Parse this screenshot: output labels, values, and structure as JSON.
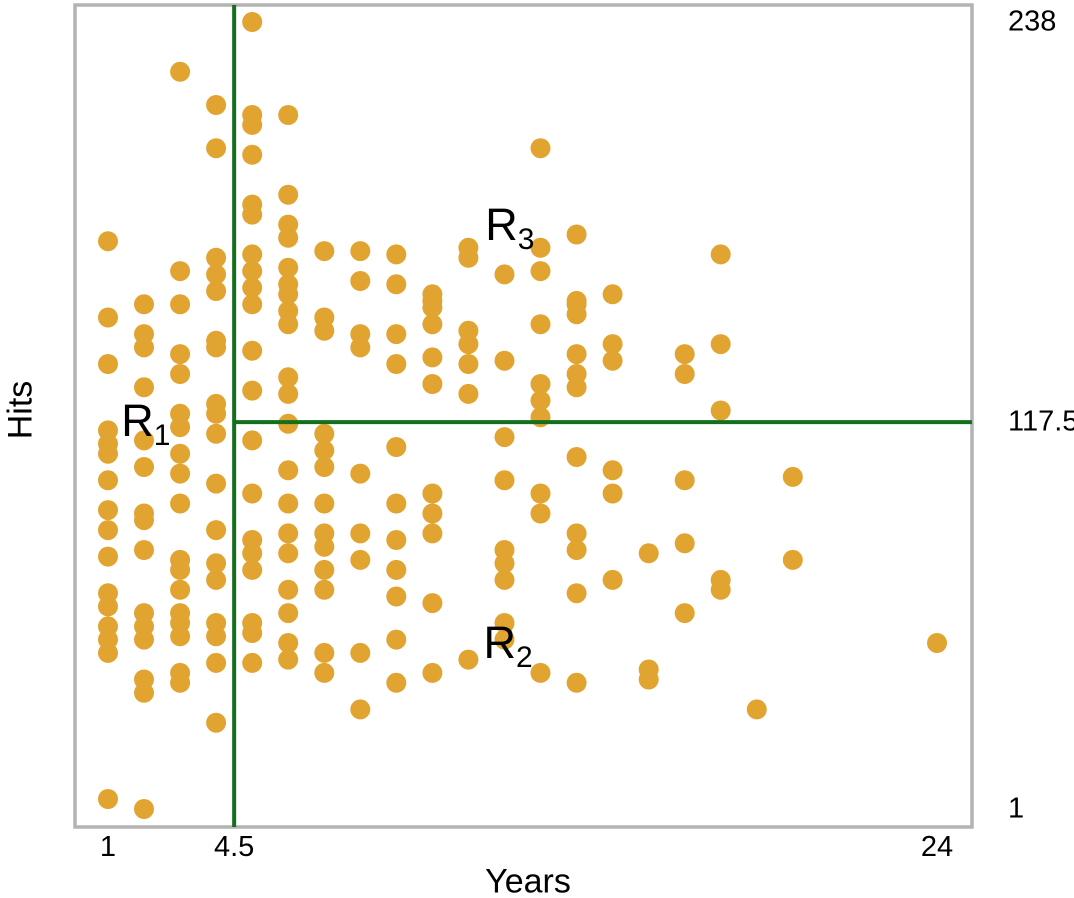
{
  "chart_data": {
    "type": "scatter",
    "title": "",
    "xlabel": "Years",
    "ylabel": "Hits",
    "xlim": [
      0.3,
      25
    ],
    "ylim": [
      -4,
      243
    ],
    "grid": false,
    "legend": "none",
    "x_ticks": [
      {
        "value": 1,
        "label": "1"
      },
      {
        "value": 4.5,
        "label": "4.5"
      },
      {
        "value": 24,
        "label": "24"
      }
    ],
    "y_ticks": [
      {
        "value": 238,
        "label": "238"
      },
      {
        "value": 117.5,
        "label": "117.5"
      },
      {
        "value": 1,
        "label": "1"
      }
    ],
    "splits": {
      "vertical_at_years": 4.5,
      "horizontal_at_hits": 117.5
    },
    "regions": [
      {
        "base": "R",
        "sub": "1",
        "years": 2.05,
        "hits": 117
      },
      {
        "base": "R",
        "sub": "2",
        "years": 12.1,
        "hits": 50
      },
      {
        "base": "R",
        "sub": "3",
        "years": 12.15,
        "hits": 176
      }
    ],
    "colors": {
      "point": "#E2A431",
      "split_line": "#136F1C",
      "plot_border": "#B3B3B3",
      "text": "#000000"
    },
    "points": [
      [
        1,
        172
      ],
      [
        1,
        149
      ],
      [
        1,
        135
      ],
      [
        1,
        115
      ],
      [
        1,
        111
      ],
      [
        1,
        108
      ],
      [
        1,
        100
      ],
      [
        1,
        91
      ],
      [
        1,
        85
      ],
      [
        1,
        77
      ],
      [
        1,
        66
      ],
      [
        1,
        62
      ],
      [
        1,
        56
      ],
      [
        1,
        52
      ],
      [
        1,
        48
      ],
      [
        1,
        4
      ],
      [
        2,
        153
      ],
      [
        2,
        144
      ],
      [
        2,
        140
      ],
      [
        2,
        128
      ],
      [
        2,
        112
      ],
      [
        2,
        104
      ],
      [
        2,
        90
      ],
      [
        2,
        88
      ],
      [
        2,
        79
      ],
      [
        2,
        60
      ],
      [
        2,
        56
      ],
      [
        2,
        52
      ],
      [
        2,
        40
      ],
      [
        2,
        36
      ],
      [
        2,
        1
      ],
      [
        3,
        223
      ],
      [
        3,
        163
      ],
      [
        3,
        153
      ],
      [
        3,
        138
      ],
      [
        3,
        132
      ],
      [
        3,
        120
      ],
      [
        3,
        116
      ],
      [
        3,
        108
      ],
      [
        3,
        102
      ],
      [
        3,
        93
      ],
      [
        3,
        76
      ],
      [
        3,
        73
      ],
      [
        3,
        67
      ],
      [
        3,
        60
      ],
      [
        3,
        57
      ],
      [
        3,
        53
      ],
      [
        3,
        42
      ],
      [
        3,
        39
      ],
      [
        4,
        213
      ],
      [
        4,
        200
      ],
      [
        4,
        167
      ],
      [
        4,
        162
      ],
      [
        4,
        157
      ],
      [
        4,
        142
      ],
      [
        4,
        140
      ],
      [
        4,
        123
      ],
      [
        4,
        120
      ],
      [
        4,
        114
      ],
      [
        4,
        99
      ],
      [
        4,
        85
      ],
      [
        4,
        75
      ],
      [
        4,
        70
      ],
      [
        4,
        57
      ],
      [
        4,
        53
      ],
      [
        4,
        45
      ],
      [
        4,
        27
      ],
      [
        5,
        238
      ],
      [
        5,
        210
      ],
      [
        5,
        207
      ],
      [
        5,
        198
      ],
      [
        5,
        183
      ],
      [
        5,
        180
      ],
      [
        5,
        168
      ],
      [
        5,
        163
      ],
      [
        5,
        158
      ],
      [
        5,
        153
      ],
      [
        5,
        139
      ],
      [
        5,
        127
      ],
      [
        5,
        112
      ],
      [
        5,
        96
      ],
      [
        5,
        82
      ],
      [
        5,
        78
      ],
      [
        5,
        73
      ],
      [
        5,
        57
      ],
      [
        5,
        54
      ],
      [
        5,
        45
      ],
      [
        6,
        210
      ],
      [
        6,
        186
      ],
      [
        6,
        177
      ],
      [
        6,
        173
      ],
      [
        6,
        164
      ],
      [
        6,
        159
      ],
      [
        6,
        156
      ],
      [
        6,
        151
      ],
      [
        6,
        147
      ],
      [
        6,
        131
      ],
      [
        6,
        126
      ],
      [
        6,
        117
      ],
      [
        6,
        103
      ],
      [
        6,
        93
      ],
      [
        6,
        84
      ],
      [
        6,
        78
      ],
      [
        6,
        67
      ],
      [
        6,
        60
      ],
      [
        6,
        51
      ],
      [
        6,
        46
      ],
      [
        7,
        169
      ],
      [
        7,
        149
      ],
      [
        7,
        145
      ],
      [
        7,
        114
      ],
      [
        7,
        109
      ],
      [
        7,
        104
      ],
      [
        7,
        93
      ],
      [
        7,
        84
      ],
      [
        7,
        80
      ],
      [
        7,
        73
      ],
      [
        7,
        67
      ],
      [
        7,
        48
      ],
      [
        7,
        42
      ],
      [
        8,
        169
      ],
      [
        8,
        160
      ],
      [
        8,
        144
      ],
      [
        8,
        140
      ],
      [
        8,
        102
      ],
      [
        8,
        84
      ],
      [
        8,
        76
      ],
      [
        8,
        48
      ],
      [
        8,
        31
      ],
      [
        9,
        168
      ],
      [
        9,
        159
      ],
      [
        9,
        144
      ],
      [
        9,
        135
      ],
      [
        9,
        110
      ],
      [
        9,
        93
      ],
      [
        9,
        82
      ],
      [
        9,
        73
      ],
      [
        9,
        65
      ],
      [
        9,
        52
      ],
      [
        9,
        39
      ],
      [
        10,
        156
      ],
      [
        10,
        154
      ],
      [
        10,
        152
      ],
      [
        10,
        147
      ],
      [
        10,
        137
      ],
      [
        10,
        129
      ],
      [
        10,
        96
      ],
      [
        10,
        90
      ],
      [
        10,
        84
      ],
      [
        10,
        63
      ],
      [
        10,
        42
      ],
      [
        11,
        170
      ],
      [
        11,
        167
      ],
      [
        11,
        145
      ],
      [
        11,
        141
      ],
      [
        11,
        135
      ],
      [
        11,
        126
      ],
      [
        11,
        46
      ],
      [
        12,
        162
      ],
      [
        12,
        136
      ],
      [
        12,
        113
      ],
      [
        12,
        100
      ],
      [
        12,
        79
      ],
      [
        12,
        75
      ],
      [
        12,
        70
      ],
      [
        12,
        57
      ],
      [
        12,
        52
      ],
      [
        13,
        200
      ],
      [
        13,
        170
      ],
      [
        13,
        163
      ],
      [
        13,
        147
      ],
      [
        13,
        129
      ],
      [
        13,
        124
      ],
      [
        13,
        119
      ],
      [
        13,
        96
      ],
      [
        13,
        90
      ],
      [
        13,
        42
      ],
      [
        14,
        174
      ],
      [
        14,
        154
      ],
      [
        14,
        153
      ],
      [
        14,
        150
      ],
      [
        14,
        138
      ],
      [
        14,
        132
      ],
      [
        14,
        128
      ],
      [
        14,
        107
      ],
      [
        14,
        84
      ],
      [
        14,
        79
      ],
      [
        14,
        66
      ],
      [
        14,
        39
      ],
      [
        15,
        156
      ],
      [
        15,
        141
      ],
      [
        15,
        136
      ],
      [
        15,
        103
      ],
      [
        15,
        96
      ],
      [
        15,
        70
      ],
      [
        16,
        78
      ],
      [
        16,
        43
      ],
      [
        16,
        40
      ],
      [
        17,
        138
      ],
      [
        17,
        132
      ],
      [
        17,
        100
      ],
      [
        17,
        81
      ],
      [
        17,
        60
      ],
      [
        18,
        168
      ],
      [
        18,
        141
      ],
      [
        18,
        121
      ],
      [
        18,
        70
      ],
      [
        18,
        67
      ],
      [
        19,
        31
      ],
      [
        20,
        101
      ],
      [
        20,
        76
      ],
      [
        24,
        51
      ]
    ]
  }
}
